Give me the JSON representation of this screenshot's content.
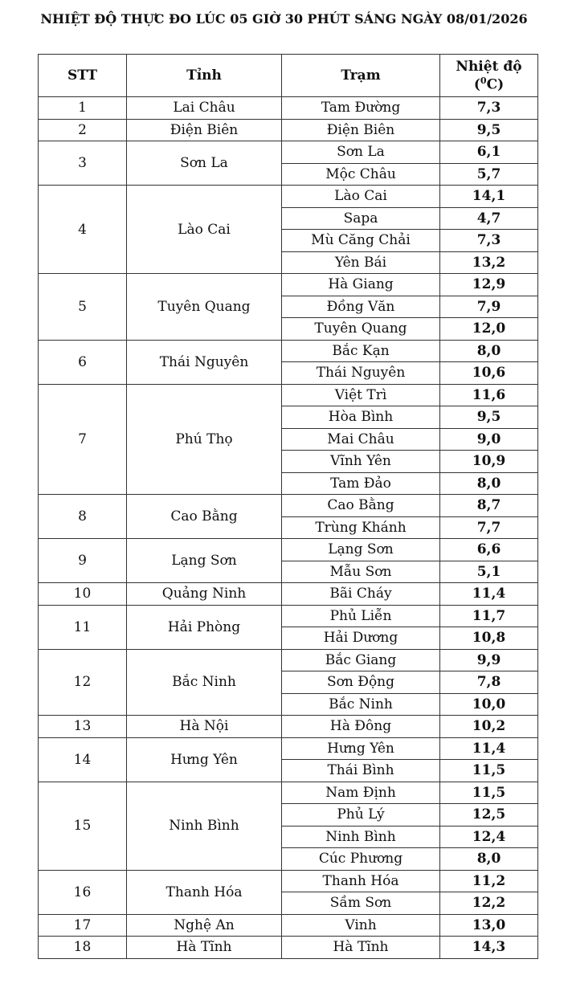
{
  "title": "NHIỆT ĐỘ THỰC ĐO LÚC 05 GIỜ 30 PHÚT SÁNG NGÀY 08/01/2026",
  "table": {
    "columns": [
      "STT",
      "Tỉnh",
      "Trạm"
    ],
    "temp_header": {
      "text": "Nhiệt độ",
      "open": "(",
      "sup": "0",
      "unit": "C)"
    },
    "provinces": [
      {
        "stt": "1",
        "name": "Lai Châu",
        "stations": [
          [
            "Tam Đường",
            "7,3"
          ]
        ]
      },
      {
        "stt": "2",
        "name": "Điện Biên",
        "stations": [
          [
            "Điện Biên",
            "9,5"
          ]
        ]
      },
      {
        "stt": "3",
        "name": "Sơn La",
        "stations": [
          [
            "Sơn La",
            "6,1"
          ],
          [
            "Mộc Châu",
            "5,7"
          ]
        ]
      },
      {
        "stt": "4",
        "name": "Lào Cai",
        "stations": [
          [
            "Lào Cai",
            "14,1"
          ],
          [
            "Sapa",
            "4,7"
          ],
          [
            "Mù Căng Chải",
            "7,3"
          ],
          [
            "Yên Bái",
            "13,2"
          ]
        ]
      },
      {
        "stt": "5",
        "name": "Tuyên Quang",
        "stations": [
          [
            "Hà Giang",
            "12,9"
          ],
          [
            "Đồng Văn",
            "7,9"
          ],
          [
            "Tuyên Quang",
            "12,0"
          ]
        ]
      },
      {
        "stt": "6",
        "name": "Thái Nguyên",
        "stations": [
          [
            "Bắc Kạn",
            "8,0"
          ],
          [
            "Thái Nguyên",
            "10,6"
          ]
        ]
      },
      {
        "stt": "7",
        "name": "Phú Thọ",
        "stations": [
          [
            "Việt Trì",
            "11,6"
          ],
          [
            "Hòa Bình",
            "9,5"
          ],
          [
            "Mai Châu",
            "9,0"
          ],
          [
            "Vĩnh Yên",
            "10,9"
          ],
          [
            "Tam Đảo",
            "8,0"
          ]
        ]
      },
      {
        "stt": "8",
        "name": "Cao Bằng",
        "stations": [
          [
            "Cao Bằng",
            "8,7"
          ],
          [
            "Trùng Khánh",
            "7,7"
          ]
        ]
      },
      {
        "stt": "9",
        "name": "Lạng Sơn",
        "stations": [
          [
            "Lạng Sơn",
            "6,6"
          ],
          [
            "Mẫu Sơn",
            "5,1"
          ]
        ]
      },
      {
        "stt": "10",
        "name": "Quảng Ninh",
        "stations": [
          [
            "Bãi Cháy",
            "11,4"
          ]
        ]
      },
      {
        "stt": "11",
        "name": "Hải Phòng",
        "stations": [
          [
            "Phủ Liễn",
            "11,7"
          ],
          [
            "Hải Dương",
            "10,8"
          ]
        ]
      },
      {
        "stt": "12",
        "name": "Bắc Ninh",
        "stations": [
          [
            "Bắc Giang",
            "9,9"
          ],
          [
            "Sơn Động",
            "7,8"
          ],
          [
            "Bắc Ninh",
            "10,0"
          ]
        ]
      },
      {
        "stt": "13",
        "name": "Hà Nội",
        "stations": [
          [
            "Hà Đông",
            "10,2"
          ]
        ]
      },
      {
        "stt": "14",
        "name": "Hưng Yên",
        "stations": [
          [
            "Hưng Yên",
            "11,4"
          ],
          [
            "Thái Bình",
            "11,5"
          ]
        ]
      },
      {
        "stt": "15",
        "name": "Ninh Bình",
        "stations": [
          [
            "Nam Định",
            "11,5"
          ],
          [
            "Phủ Lý",
            "12,5"
          ],
          [
            "Ninh Bình",
            "12,4"
          ],
          [
            "Cúc Phương",
            "8,0"
          ]
        ]
      },
      {
        "stt": "16",
        "name": "Thanh Hóa",
        "stations": [
          [
            "Thanh Hóa",
            "11,2"
          ],
          [
            "Sầm Sơn",
            "12,2"
          ]
        ]
      },
      {
        "stt": "17",
        "name": "Nghệ An",
        "stations": [
          [
            "Vinh",
            "13,0"
          ]
        ]
      },
      {
        "stt": "18",
        "name": "Hà Tĩnh",
        "stations": [
          [
            "Hà Tĩnh",
            "14,3"
          ]
        ]
      }
    ]
  }
}
